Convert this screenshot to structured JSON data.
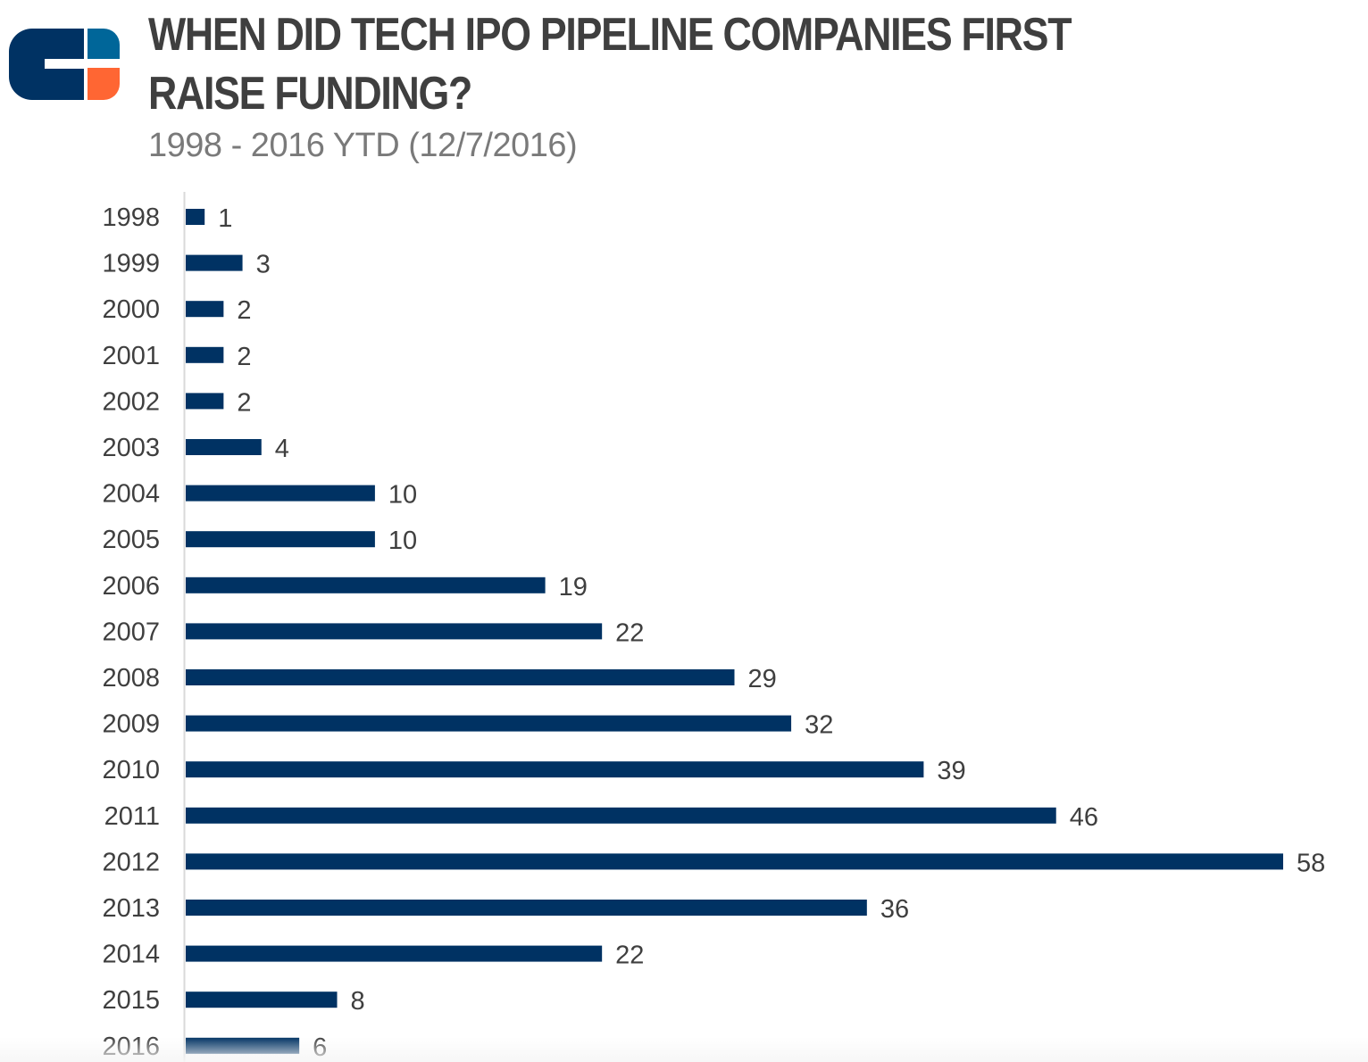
{
  "header": {
    "title": "WHEN DID TECH IPO PIPELINE COMPANIES FIRST RAISE FUNDING?",
    "subtitle": "1998 - 2016 YTD (12/7/2016)",
    "logo": "cb-insights-logo"
  },
  "colors": {
    "bar": "#003263",
    "logo_navy": "#003263",
    "logo_blue": "#006699",
    "logo_orange": "#ff6633",
    "title_text": "#3f3f3f",
    "subtitle_text": "#7a7a7a",
    "axis_line": "#d9d9d9"
  },
  "chart_data": {
    "type": "bar",
    "orientation": "horizontal",
    "title": "WHEN DID TECH IPO PIPELINE COMPANIES FIRST RAISE FUNDING?",
    "subtitle": "1998 - 2016 YTD (12/7/2016)",
    "xlabel": "",
    "ylabel": "",
    "categories": [
      "1998",
      "1999",
      "2000",
      "2001",
      "2002",
      "2003",
      "2004",
      "2005",
      "2006",
      "2007",
      "2008",
      "2009",
      "2010",
      "2011",
      "2012",
      "2013",
      "2014",
      "2015",
      "2016"
    ],
    "values": [
      1,
      3,
      2,
      2,
      2,
      4,
      10,
      10,
      19,
      22,
      29,
      32,
      39,
      46,
      58,
      36,
      22,
      8,
      6
    ],
    "xlim": [
      0,
      58
    ],
    "grid": false,
    "legend": "none",
    "data_labels": true
  }
}
